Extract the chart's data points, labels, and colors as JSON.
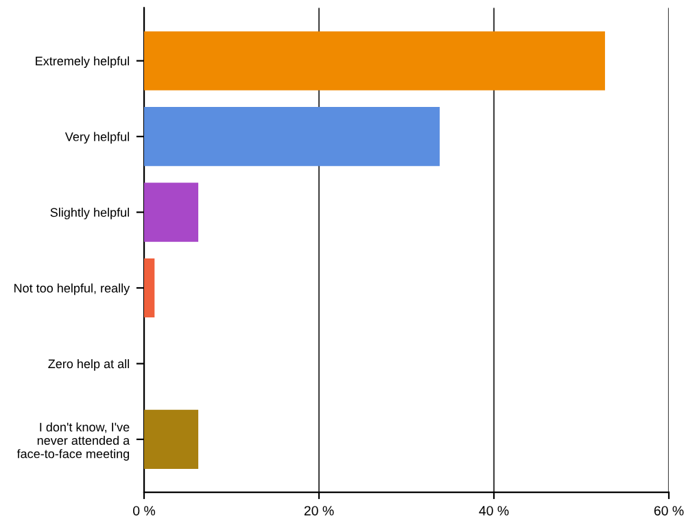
{
  "chart_data": {
    "type": "bar",
    "orientation": "horizontal",
    "categories": [
      "Extremely helpful",
      "Very helpful",
      "Slightly helpful",
      "Not too helpful, really",
      "Zero help at all",
      "I don't know, I've\nnever attended a\nface-to-face meeting"
    ],
    "values": [
      52.7,
      33.8,
      6.2,
      1.2,
      0,
      6.2
    ],
    "colors": [
      "#f08a00",
      "#5b8ee0",
      "#a848c8",
      "#f0603c",
      "#999999",
      "#a88010"
    ],
    "xlim": [
      0,
      60
    ],
    "xticks": [
      {
        "value": 0,
        "label": "0 %"
      },
      {
        "value": 20,
        "label": "20 %"
      },
      {
        "value": 40,
        "label": "40 %"
      },
      {
        "value": 60,
        "label": "60 %"
      }
    ],
    "grid": "x",
    "legend": false
  }
}
